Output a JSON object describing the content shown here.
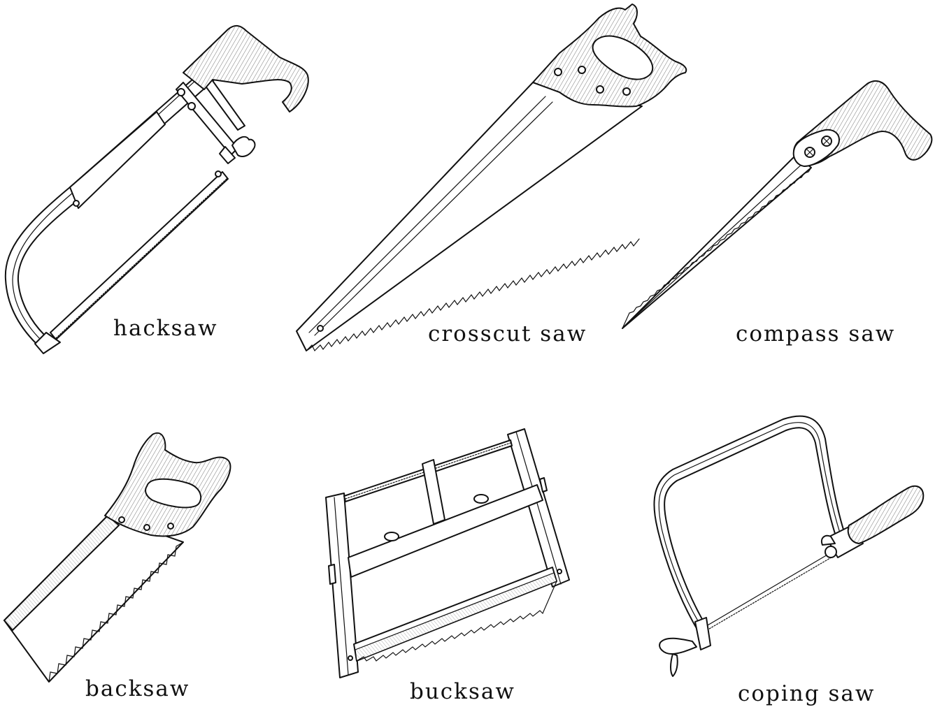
{
  "labels": {
    "hacksaw": "hacksaw",
    "crosscut": "crosscut saw",
    "compass": "compass saw",
    "backsaw": "backsaw",
    "bucksaw": "bucksaw",
    "coping": "coping saw"
  },
  "colors": {
    "ink": "#111111",
    "background": "#ffffff"
  }
}
